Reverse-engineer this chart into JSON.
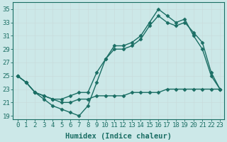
{
  "xlabel": "Humidex (Indice chaleur)",
  "bg_color": "#cce8e8",
  "grid_color": "#aad0d0",
  "line_color": "#1a6e64",
  "xlim": [
    -0.5,
    23.5
  ],
  "ylim": [
    18.5,
    36
  ],
  "yticks": [
    19,
    21,
    23,
    25,
    27,
    29,
    31,
    33,
    35
  ],
  "xticks": [
    0,
    1,
    2,
    3,
    4,
    5,
    6,
    7,
    8,
    9,
    10,
    11,
    12,
    13,
    14,
    15,
    16,
    17,
    18,
    19,
    20,
    21,
    22,
    23
  ],
  "line_top": {
    "x": [
      0,
      1,
      2,
      3,
      4,
      5,
      6,
      7,
      8,
      9,
      10,
      11,
      12,
      13,
      14,
      15,
      16,
      17,
      18,
      19,
      20,
      21,
      22,
      23
    ],
    "y": [
      25,
      24,
      22.5,
      21.5,
      20.5,
      20,
      19.5,
      19,
      20.5,
      24,
      27.5,
      29.5,
      29.5,
      30,
      31,
      33,
      35,
      34,
      33,
      33.5,
      31,
      29,
      25,
      23
    ]
  },
  "line_mid": {
    "x": [
      0,
      1,
      2,
      3,
      4,
      5,
      6,
      7,
      8,
      9,
      10,
      11,
      12,
      13,
      14,
      15,
      16,
      17,
      18,
      19,
      20,
      21,
      22,
      23
    ],
    "y": [
      25,
      24,
      22.5,
      22,
      21.5,
      21.5,
      22,
      22.5,
      22.5,
      25.5,
      27.5,
      29,
      29,
      29.5,
      30.5,
      32.5,
      34,
      33,
      32.5,
      33,
      31.5,
      30,
      25.5,
      23
    ]
  },
  "line_bot": {
    "x": [
      0,
      1,
      2,
      3,
      4,
      5,
      6,
      7,
      8,
      9,
      10,
      11,
      12,
      13,
      14,
      15,
      16,
      17,
      18,
      19,
      20,
      21,
      22,
      23
    ],
    "y": [
      25,
      24,
      22.5,
      22,
      21.5,
      21,
      21,
      21.5,
      21.5,
      22,
      22,
      22,
      22,
      22.5,
      22.5,
      22.5,
      22.5,
      23,
      23,
      23,
      23,
      23,
      23,
      23
    ]
  },
  "markersize": 2.5,
  "linewidth": 1.0,
  "fontsize_label": 7.5,
  "fontsize_tick": 6.5
}
